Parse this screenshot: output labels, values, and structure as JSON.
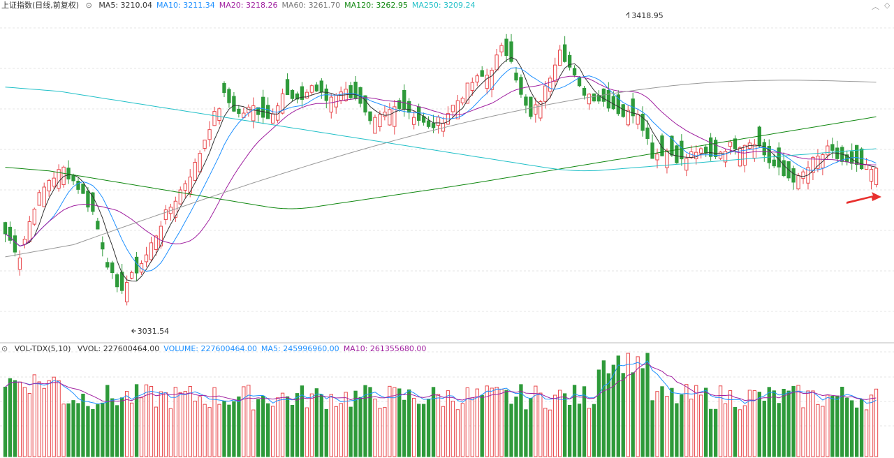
{
  "price_header": {
    "title": "上证指数(日线,前复权)",
    "indicators": [
      {
        "label": "MA5: 3210.04",
        "color": "#333333"
      },
      {
        "label": "MA10: 3211.34",
        "color": "#1e90ff"
      },
      {
        "label": "MA20: 3218.26",
        "color": "#a020a0"
      },
      {
        "label": "MA60: 3261.70",
        "color": "#777777"
      },
      {
        "label": "MA120: 3262.95",
        "color": "#118811"
      },
      {
        "label": "MA250: 3209.24",
        "color": "#22c0c8"
      }
    ]
  },
  "volume_header": {
    "title": "VOL-TDX(5,10)",
    "indicators": [
      {
        "label": "VVOL: 227600464.00",
        "color": "#333333"
      },
      {
        "label": "VOLUME: 227600464.00",
        "color": "#1e90ff"
      },
      {
        "label": "MA5: 245996960.00",
        "color": "#1e90ff"
      },
      {
        "label": "MA10: 261355680.00",
        "color": "#a020a0"
      }
    ]
  },
  "corner_icons": [
    "chevron-up-icon",
    "diamond-icon"
  ],
  "colors": {
    "up": "#e8474b",
    "down": "#2e9a3a",
    "ma5": "#333333",
    "ma10": "#1e90ff",
    "ma20": "#a020a0",
    "ma60": "#999999",
    "ma120": "#118811",
    "ma250": "#22c0c8",
    "grid": "#e6e6e6",
    "arrow": "#e8302e"
  },
  "chart_data": {
    "type": "candlestick",
    "ylim": [
      2990,
      3450
    ],
    "annotations": [
      {
        "label": "3418.95",
        "type": "high"
      },
      {
        "label": "3031.54",
        "type": "low"
      }
    ],
    "anchors": [
      [
        0,
        3140,
        "d"
      ],
      [
        3,
        3110,
        "u"
      ],
      [
        6,
        3180,
        "u"
      ],
      [
        9,
        3215,
        "u"
      ],
      [
        12,
        3230,
        "u"
      ],
      [
        15,
        3205,
        "d"
      ],
      [
        18,
        3170,
        "d"
      ],
      [
        21,
        3100,
        "d"
      ],
      [
        23,
        3060,
        "d"
      ],
      [
        26,
        3080,
        "u"
      ],
      [
        29,
        3110,
        "u"
      ],
      [
        32,
        3155,
        "u"
      ],
      [
        36,
        3200,
        "u"
      ],
      [
        39,
        3235,
        "u"
      ],
      [
        42,
        3290,
        "u"
      ],
      [
        45,
        3330,
        "d"
      ],
      [
        48,
        3305,
        "d"
      ],
      [
        51,
        3315,
        "u"
      ],
      [
        54,
        3300,
        "d"
      ],
      [
        57,
        3335,
        "u"
      ],
      [
        60,
        3320,
        "d"
      ],
      [
        63,
        3345,
        "u"
      ],
      [
        66,
        3325,
        "d"
      ],
      [
        69,
        3340,
        "u"
      ],
      [
        72,
        3330,
        "d"
      ],
      [
        75,
        3290,
        "d"
      ],
      [
        78,
        3305,
        "u"
      ],
      [
        81,
        3320,
        "d"
      ],
      [
        84,
        3305,
        "u"
      ],
      [
        87,
        3285,
        "d"
      ],
      [
        90,
        3300,
        "u"
      ],
      [
        93,
        3325,
        "u"
      ],
      [
        96,
        3350,
        "u"
      ],
      [
        99,
        3360,
        "u"
      ],
      [
        102,
        3395,
        "u"
      ],
      [
        104,
        3385,
        "d"
      ],
      [
        106,
        3330,
        "d"
      ],
      [
        108,
        3300,
        "d"
      ],
      [
        111,
        3340,
        "u"
      ],
      [
        114,
        3400,
        "u"
      ],
      [
        116,
        3370,
        "d"
      ],
      [
        118,
        3340,
        "d"
      ],
      [
        121,
        3330,
        "d"
      ],
      [
        124,
        3320,
        "d"
      ],
      [
        127,
        3305,
        "d"
      ],
      [
        130,
        3310,
        "u"
      ],
      [
        133,
        3250,
        "d"
      ],
      [
        136,
        3255,
        "u"
      ],
      [
        139,
        3240,
        "d"
      ],
      [
        142,
        3255,
        "u"
      ],
      [
        145,
        3245,
        "d"
      ],
      [
        148,
        3260,
        "u"
      ],
      [
        151,
        3265,
        "u"
      ],
      [
        154,
        3270,
        "u"
      ],
      [
        157,
        3240,
        "d"
      ],
      [
        160,
        3220,
        "d"
      ],
      [
        163,
        3215,
        "u"
      ],
      [
        166,
        3240,
        "u"
      ],
      [
        169,
        3255,
        "u"
      ],
      [
        172,
        3240,
        "d"
      ],
      [
        175,
        3230,
        "d"
      ],
      [
        178,
        3228,
        "u"
      ]
    ],
    "volume_ylim": [
      0,
      1
    ],
    "series_names": [
      "MA5",
      "MA10",
      "MA20",
      "MA60",
      "MA120",
      "MA250"
    ]
  }
}
